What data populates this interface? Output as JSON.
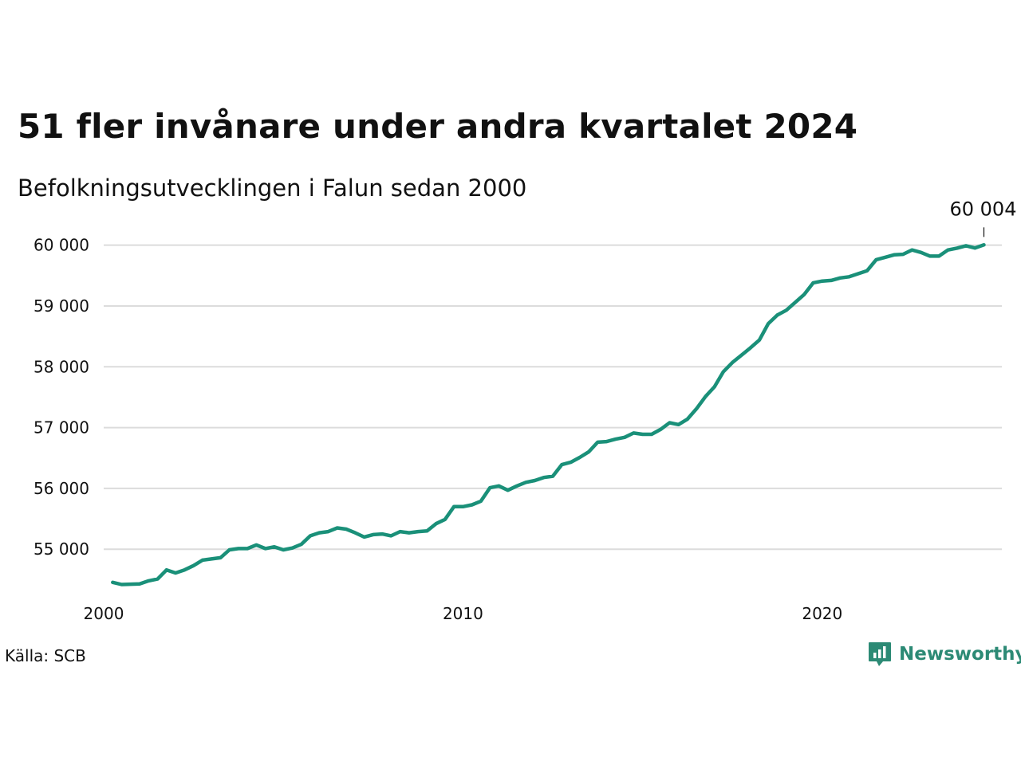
{
  "title": "51 fler invånare under andra kvartalet 2024",
  "subtitle": "Befolkningsutvecklingen i Falun sedan 2000",
  "source": "Källa: SCB",
  "brand": {
    "name": "Newsworthy",
    "icon": "newsworthy-logo-icon",
    "color": "#2c8a75"
  },
  "chart_data": {
    "type": "line",
    "title": "51 fler invånare under andra kvartalet 2024",
    "subtitle": "Befolkningsutvecklingen i Falun sedan 2000",
    "xlabel": "",
    "ylabel": "",
    "xlim": [
      2000,
      2025
    ],
    "ylim": [
      54400,
      60100
    ],
    "x_ticks": [
      2000,
      2010,
      2020
    ],
    "x_tick_labels": [
      "2000",
      "2010",
      "2020"
    ],
    "y_ticks": [
      55000,
      56000,
      57000,
      58000,
      59000,
      60000
    ],
    "y_tick_labels": [
      "55 000",
      "56 000",
      "57 000",
      "58 000",
      "59 000",
      "60 000"
    ],
    "grid": "horizontal",
    "legend": "none",
    "line_color": "#1a9079",
    "x_step": 0.25,
    "x_start": 2000.25,
    "series": [
      {
        "values": [
          54455,
          54420,
          54425,
          54430,
          54480,
          54510,
          54660,
          54610,
          54660,
          54730,
          54820,
          54840,
          54860,
          54990,
          55010,
          55010,
          55070,
          55010,
          55040,
          54990,
          55020,
          55080,
          55220,
          55270,
          55290,
          55350,
          55330,
          55270,
          55200,
          55240,
          55250,
          55220,
          55290,
          55270,
          55290,
          55300,
          55420,
          55490,
          55700,
          55700,
          55730,
          55790,
          56010,
          56040,
          55970,
          56040,
          56100,
          56130,
          56180,
          56200,
          56390,
          56430,
          56510,
          56600,
          56760,
          56770,
          56810,
          56840,
          56910,
          56890,
          56890,
          56970,
          57080,
          57050,
          57140,
          57310,
          57510,
          57670,
          57920,
          58070,
          58190,
          58310,
          58440,
          58710,
          58850,
          58930,
          59060,
          59190,
          59380,
          59410,
          59420,
          59460,
          59480,
          59530,
          59580,
          59760,
          59800,
          59840,
          59850,
          59920,
          59880,
          59820,
          59820,
          59920,
          59950,
          59990,
          59953,
          60004
        ]
      }
    ],
    "annotations": [
      {
        "text": "60 004",
        "x": 2024.5,
        "y": 60004
      }
    ]
  }
}
